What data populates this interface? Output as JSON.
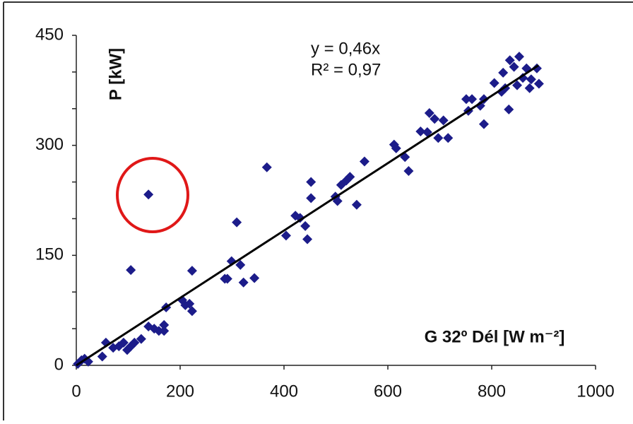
{
  "chart_data": {
    "type": "scatter",
    "y_label": "P [kW]",
    "x_label": "G 32º Dél [W m⁻²]",
    "equation": "y = 0,46x",
    "r_squared": "R² = 0,97",
    "xlim": [
      0,
      1000
    ],
    "xticks": [
      0,
      200,
      400,
      600,
      800,
      1000
    ],
    "ylim": [
      0,
      450
    ],
    "yticks": [
      0,
      150,
      300,
      450
    ],
    "yminorticks": [
      50,
      100,
      200,
      250,
      350,
      400
    ],
    "series": [
      {
        "color": "#1c1c8a",
        "x": [
          3,
          10,
          16,
          23,
          50,
          57,
          71,
          82,
          91,
          98,
          105,
          112,
          125,
          105,
          139,
          150,
          159,
          169,
          173,
          169,
          139,
          204,
          210,
          218,
          223,
          223,
          286,
          291,
          299,
          309,
          316,
          322,
          343,
          367,
          404,
          422,
          431,
          441,
          445,
          452,
          452,
          499,
          503,
          510,
          520,
          527,
          540,
          555,
          612,
          616,
          633,
          640,
          663,
          676,
          680,
          690,
          697,
          707,
          716,
          751,
          755,
          762,
          778,
          785,
          785,
          805,
          819,
          822,
          826,
          833,
          835,
          843,
          853,
          849,
          860,
          867,
          873,
          876,
          887,
          891
        ],
        "values": [
          2,
          7,
          9,
          5,
          12,
          31,
          24,
          26,
          31,
          21,
          26,
          31,
          36,
          130,
          53,
          50,
          47,
          55,
          79,
          47,
          233,
          89,
          82,
          84,
          74,
          129,
          118,
          118,
          142,
          195,
          137,
          113,
          119,
          270,
          177,
          204,
          201,
          190,
          172,
          228,
          250,
          230,
          224,
          246,
          252,
          257,
          219,
          278,
          301,
          296,
          284,
          265,
          319,
          318,
          344,
          336,
          310,
          334,
          310,
          363,
          347,
          363,
          354,
          329,
          363,
          385,
          373,
          399,
          378,
          349,
          416,
          407,
          421,
          382,
          392,
          405,
          378,
          390,
          405,
          384
        ]
      }
    ],
    "trendline": {
      "color": "#000000",
      "x": [
        0,
        890
      ],
      "values": [
        0,
        409
      ]
    }
  }
}
